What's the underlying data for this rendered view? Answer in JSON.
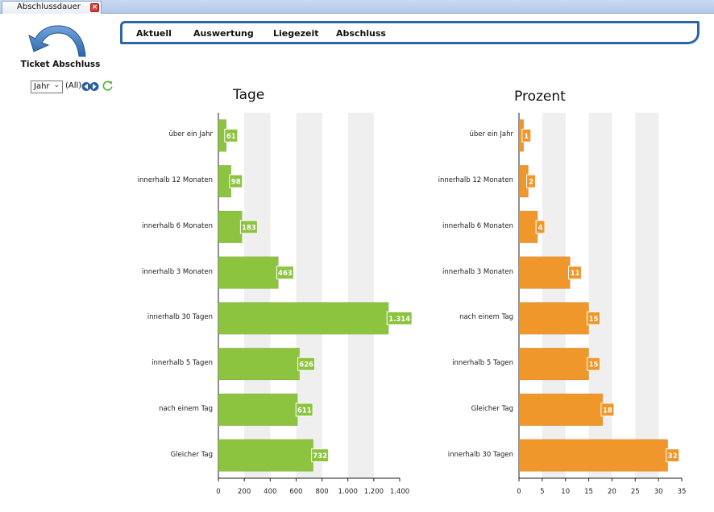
{
  "window": {
    "tab_title": "Abschlussdauer",
    "close_icon": "close-icon"
  },
  "sidebar": {
    "title": "Ticket Abschluss",
    "back_icon": "curved-back-arrow-icon",
    "period_value": "Jahr",
    "filter_value": "(All)",
    "refresh_icon": "refresh-icon"
  },
  "menu": {
    "items": [
      "Aktuell",
      "Auswertung",
      "Liegezeit",
      "Abschluss"
    ]
  },
  "colors": {
    "green_bar": "#8cc43f",
    "orange_bar": "#f0972b",
    "menu_border": "#2d66a8",
    "band": "#efefef"
  },
  "chart_data": [
    {
      "type": "bar",
      "orientation": "horizontal",
      "title": "Tage",
      "categories": [
        "über ein Jahr",
        "innerhalb 12 Monaten",
        "innerhalb 6 Monaten",
        "innerhalb 3 Monaten",
        "innerhalb 30 Tagen",
        "innerhalb 5 Tagen",
        "nach einem Tag",
        "Gleicher Tag"
      ],
      "values": [
        61,
        98,
        183,
        463,
        1314,
        626,
        611,
        732
      ],
      "value_labels": [
        "61",
        "98",
        "183",
        "463",
        "1.314",
        "626",
        "611",
        "732"
      ],
      "xlim": [
        0,
        1400
      ],
      "ticks": [
        0,
        200,
        400,
        600,
        800,
        1000,
        1200,
        1400
      ],
      "tick_labels": [
        "0",
        "200",
        "400",
        "600",
        "800",
        "1.000",
        "1.200",
        "1.400"
      ],
      "color": "#8cc43f"
    },
    {
      "type": "bar",
      "orientation": "horizontal",
      "title": "Prozent",
      "categories": [
        "über ein Jahr",
        "innerhalb 12 Monaten",
        "innerhalb 6 Monaten",
        "innerhalb 3 Monaten",
        "nach einem Tag",
        "innerhalb 5 Tagen",
        "Gleicher Tag",
        "innerhalb 30 Tagen"
      ],
      "values": [
        1,
        2,
        4,
        11,
        15,
        15,
        18,
        32
      ],
      "value_labels": [
        "1",
        "2",
        "4",
        "11",
        "15",
        "15",
        "18",
        "32"
      ],
      "xlim": [
        0,
        35
      ],
      "ticks": [
        0,
        5,
        10,
        15,
        20,
        25,
        30,
        35
      ],
      "tick_labels": [
        "0",
        "5",
        "10",
        "15",
        "20",
        "25",
        "30",
        "35"
      ],
      "color": "#f0972b"
    }
  ]
}
